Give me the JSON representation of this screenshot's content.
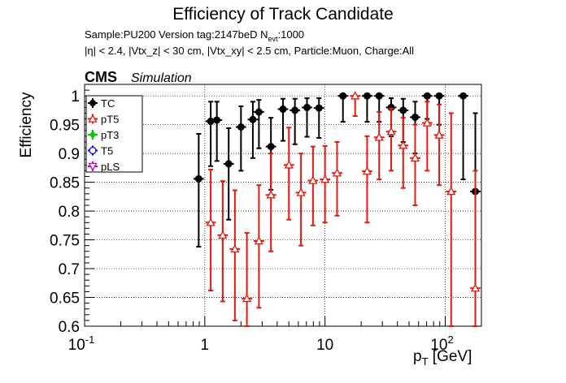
{
  "header": {
    "title": "Efficiency of Track Candidate",
    "info_line1_main": "Sample:PU200   Version tag:2147beD  N",
    "info_line1_sub": "evt",
    "info_line1_end": ":1000",
    "info_line2": "|η| < 2.4, |Vtx_z| < 30 cm, |Vtx_xy| < 2.5 cm, Particle:Muon, Charge:All",
    "cms_label": "CMS",
    "simulation_label": "Simulation"
  },
  "chart_data": {
    "type": "scatter",
    "xlabel": "p_T [GeV]",
    "ylabel": "Efficiency",
    "xscale": "log",
    "xlim": [
      0.1,
      200
    ],
    "ylim": [
      0.6,
      1.02
    ],
    "x_ticks": [
      "10^{-1}",
      "1",
      "10",
      "10^{2}"
    ],
    "y_ticks": [
      "0.6",
      "0.65",
      "0.7",
      "0.75",
      "0.8",
      "0.85",
      "0.9",
      "0.95",
      "1"
    ],
    "grid": true,
    "legend_position": "top-left",
    "legend": [
      "TC",
      "pT5",
      "pT3",
      "T5",
      "pLS"
    ],
    "series": [
      {
        "name": "TC",
        "color": "#000000",
        "marker": "filled-circle",
        "points": [
          {
            "x": 0.89,
            "y": 0.856,
            "lo": 0.738,
            "hi": 0.934
          },
          {
            "x": 1.12,
            "y": 0.956,
            "lo": 0.878,
            "hi": 0.99
          },
          {
            "x": 1.26,
            "y": 0.958,
            "lo": 0.887,
            "hi": 0.99
          },
          {
            "x": 1.58,
            "y": 0.882,
            "lo": 0.785,
            "hi": 0.944
          },
          {
            "x": 2.0,
            "y": 0.946,
            "lo": 0.87,
            "hi": 0.982
          },
          {
            "x": 2.51,
            "y": 0.959,
            "lo": 0.892,
            "hi": 0.99
          },
          {
            "x": 2.82,
            "y": 0.972,
            "lo": 0.909,
            "hi": 0.993
          },
          {
            "x": 3.55,
            "y": 0.912,
            "lo": 0.837,
            "hi": 0.962
          },
          {
            "x": 4.47,
            "y": 0.977,
            "lo": 0.922,
            "hi": 0.995
          },
          {
            "x": 5.62,
            "y": 0.975,
            "lo": 0.916,
            "hi": 0.995
          },
          {
            "x": 7.08,
            "y": 0.98,
            "lo": 0.929,
            "hi": 0.996
          },
          {
            "x": 8.91,
            "y": 0.979,
            "lo": 0.927,
            "hi": 0.996
          },
          {
            "x": 14.1,
            "y": 1.0,
            "lo": 0.955,
            "hi": 1.0
          },
          {
            "x": 22.4,
            "y": 1.0,
            "lo": 0.955,
            "hi": 1.0
          },
          {
            "x": 28.2,
            "y": 1.0,
            "lo": 0.955,
            "hi": 1.0
          },
          {
            "x": 35.5,
            "y": 0.98,
            "lo": 0.93,
            "hi": 0.996
          },
          {
            "x": 44.7,
            "y": 0.975,
            "lo": 0.92,
            "hi": 0.995
          },
          {
            "x": 56.2,
            "y": 0.963,
            "lo": 0.9,
            "hi": 0.99
          },
          {
            "x": 70.8,
            "y": 1.0,
            "lo": 0.96,
            "hi": 1.0
          },
          {
            "x": 89.1,
            "y": 1.0,
            "lo": 0.95,
            "hi": 1.0
          },
          {
            "x": 141,
            "y": 1.0,
            "lo": 0.855,
            "hi": 1.0
          },
          {
            "x": 178,
            "y": 0.834,
            "lo": 0.6,
            "hi": 0.97
          }
        ]
      },
      {
        "name": "pT5",
        "color": "#e8170c",
        "marker": "open-triangle",
        "points": [
          {
            "x": 1.12,
            "y": 0.78,
            "lo": 0.662,
            "hi": 0.872
          },
          {
            "x": 1.41,
            "y": 0.758,
            "lo": 0.643,
            "hi": 0.852
          },
          {
            "x": 1.78,
            "y": 0.734,
            "lo": 0.61,
            "hi": 0.836
          },
          {
            "x": 2.24,
            "y": 0.648,
            "lo": 0.6,
            "hi": 0.762
          },
          {
            "x": 2.82,
            "y": 0.748,
            "lo": 0.632,
            "hi": 0.845
          },
          {
            "x": 3.55,
            "y": 0.828,
            "lo": 0.73,
            "hi": 0.9
          },
          {
            "x": 5.01,
            "y": 0.88,
            "lo": 0.785,
            "hi": 0.945
          },
          {
            "x": 6.31,
            "y": 0.832,
            "lo": 0.74,
            "hi": 0.9
          },
          {
            "x": 7.94,
            "y": 0.853,
            "lo": 0.775,
            "hi": 0.912
          },
          {
            "x": 10.0,
            "y": 0.855,
            "lo": 0.78,
            "hi": 0.913
          },
          {
            "x": 12.6,
            "y": 0.866,
            "lo": 0.792,
            "hi": 0.92
          },
          {
            "x": 17.8,
            "y": 1.0,
            "lo": 0.965,
            "hi": 1.0
          },
          {
            "x": 22.4,
            "y": 0.869,
            "lo": 0.78,
            "hi": 0.93
          },
          {
            "x": 28.2,
            "y": 0.928,
            "lo": 0.855,
            "hi": 0.972
          },
          {
            "x": 35.5,
            "y": 0.938,
            "lo": 0.87,
            "hi": 0.978
          },
          {
            "x": 44.7,
            "y": 0.914,
            "lo": 0.84,
            "hi": 0.962
          },
          {
            "x": 56.2,
            "y": 0.892,
            "lo": 0.81,
            "hi": 0.95
          },
          {
            "x": 70.8,
            "y": 0.953,
            "lo": 0.87,
            "hi": 0.99
          },
          {
            "x": 89.1,
            "y": 0.932,
            "lo": 0.845,
            "hi": 0.985
          },
          {
            "x": 112,
            "y": 0.834,
            "lo": 0.6,
            "hi": 0.97
          },
          {
            "x": 178,
            "y": 0.666,
            "lo": 0.6,
            "hi": 0.87
          }
        ]
      },
      {
        "name": "pT3",
        "color": "#00cc00",
        "marker": "filled-diamond",
        "points": []
      },
      {
        "name": "T5",
        "color": "#0000ff",
        "marker": "open-circle",
        "points": []
      },
      {
        "name": "pLS",
        "color": "#cc00cc",
        "marker": "open-triangle-down",
        "points": []
      }
    ]
  }
}
